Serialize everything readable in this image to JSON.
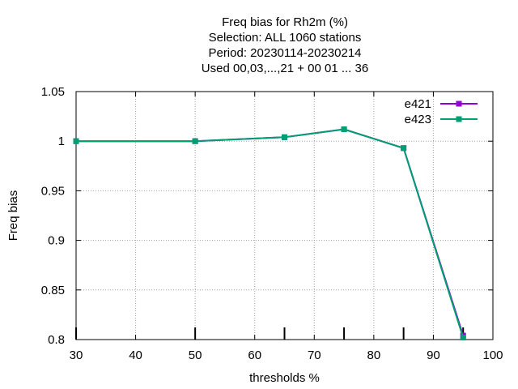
{
  "chart_data": {
    "type": "line",
    "title_lines": [
      "Freq bias  for Rh2m (%)",
      "Selection: ALL   1060 stations",
      "Period: 20230114-20230214",
      "Used  00,03,...,21  + 00 01 ... 36"
    ],
    "xlabel": "thresholds %",
    "ylabel": "Freq bias",
    "xlim": [
      30,
      100
    ],
    "ylim": [
      0.8,
      1.05
    ],
    "xticks": [
      30,
      40,
      50,
      60,
      70,
      80,
      90,
      100
    ],
    "xtick_labels": [
      "30",
      "40",
      "50",
      "60",
      "70",
      "80",
      "90",
      "100"
    ],
    "yticks": [
      0.8,
      0.85,
      0.9,
      0.95,
      1.0,
      1.05
    ],
    "ytick_labels": [
      "0.8",
      "0.85",
      "0.9",
      "0.95",
      "1",
      "1.05"
    ],
    "grid": true,
    "legend_position": "top-right",
    "x": [
      30,
      50,
      65,
      75,
      85,
      95
    ],
    "series": [
      {
        "name": "e421",
        "color": "#9400d3",
        "values": [
          1.0,
          1.0,
          1.004,
          1.012,
          0.993,
          0.804
        ]
      },
      {
        "name": "e423",
        "color": "#009e73",
        "values": [
          1.0,
          1.0,
          1.004,
          1.012,
          0.993,
          0.802
        ]
      }
    ]
  }
}
